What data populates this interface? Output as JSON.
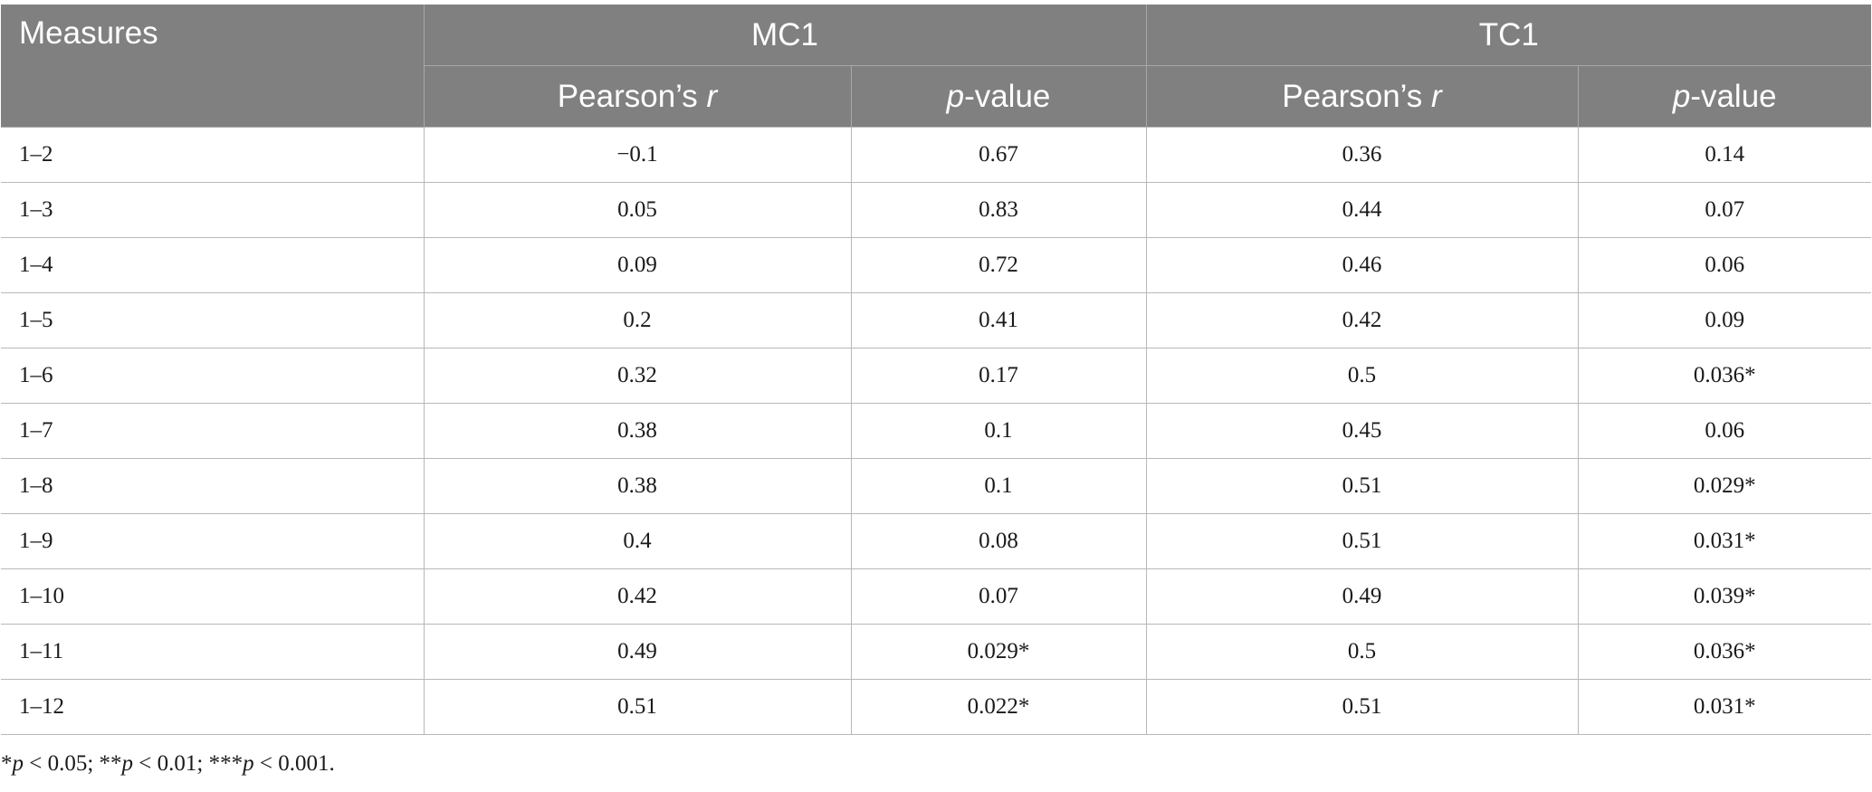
{
  "table": {
    "header": {
      "measures": "Measures",
      "group_mc1": "MC1",
      "group_tc1": "TC1",
      "pearson_prefix": "Pearson’s ",
      "pearson_r": "r",
      "p_letter": "p",
      "p_suffix": "-value"
    },
    "rows": [
      {
        "measure": "1–2",
        "mc1_r": "−0.1",
        "mc1_p": "0.67",
        "tc1_r": "0.36",
        "tc1_p": "0.14"
      },
      {
        "measure": "1–3",
        "mc1_r": "0.05",
        "mc1_p": "0.83",
        "tc1_r": "0.44",
        "tc1_p": "0.07"
      },
      {
        "measure": "1–4",
        "mc1_r": "0.09",
        "mc1_p": "0.72",
        "tc1_r": "0.46",
        "tc1_p": "0.06"
      },
      {
        "measure": "1–5",
        "mc1_r": "0.2",
        "mc1_p": "0.41",
        "tc1_r": "0.42",
        "tc1_p": "0.09"
      },
      {
        "measure": "1–6",
        "mc1_r": "0.32",
        "mc1_p": "0.17",
        "tc1_r": "0.5",
        "tc1_p": "0.036*"
      },
      {
        "measure": "1–7",
        "mc1_r": "0.38",
        "mc1_p": "0.1",
        "tc1_r": "0.45",
        "tc1_p": "0.06"
      },
      {
        "measure": "1–8",
        "mc1_r": "0.38",
        "mc1_p": "0.1",
        "tc1_r": "0.51",
        "tc1_p": "0.029*"
      },
      {
        "measure": "1–9",
        "mc1_r": "0.4",
        "mc1_p": "0.08",
        "tc1_r": "0.51",
        "tc1_p": "0.031*"
      },
      {
        "measure": "1–10",
        "mc1_r": "0.42",
        "mc1_p": "0.07",
        "tc1_r": "0.49",
        "tc1_p": "0.039*"
      },
      {
        "measure": "1–11",
        "mc1_r": "0.49",
        "mc1_p": "0.029*",
        "tc1_r": "0.5",
        "tc1_p": "0.036*"
      },
      {
        "measure": "1–12",
        "mc1_r": "0.51",
        "mc1_p": "0.022*",
        "tc1_r": "0.51",
        "tc1_p": "0.031*"
      }
    ]
  },
  "footnote": {
    "parts": [
      {
        "text": "*",
        "italic": false
      },
      {
        "text": "p",
        "italic": true
      },
      {
        "text": " < 0.05; **",
        "italic": false
      },
      {
        "text": "p",
        "italic": true
      },
      {
        "text": " < 0.01; ***",
        "italic": false
      },
      {
        "text": "p",
        "italic": true
      },
      {
        "text": " < 0.001.",
        "italic": false
      }
    ]
  },
  "colors": {
    "header_bg": "#808080",
    "header_text": "#ffffff",
    "grid_line": "#b8b8b8",
    "body_text": "#1a1a1a"
  }
}
